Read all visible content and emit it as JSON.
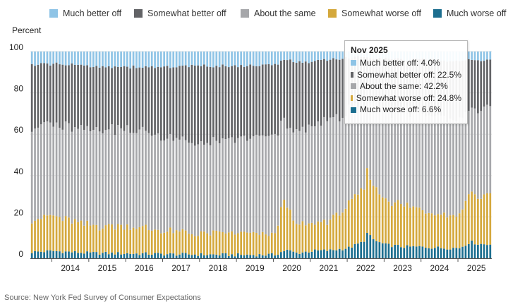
{
  "legend": {
    "items": [
      {
        "label": "Much better off",
        "color": "#8fc4e6"
      },
      {
        "label": "Somewhat better off",
        "color": "#626366"
      },
      {
        "label": "About the same",
        "color": "#a6a7aa"
      },
      {
        "label": "Somewhat worse off",
        "color": "#d4a83c"
      },
      {
        "label": "Much worse off",
        "color": "#1c6e8f"
      }
    ]
  },
  "tooltip": {
    "title": "Nov 2025",
    "rows": [
      {
        "label": "Much better off: 4.0%",
        "color": "#8fc4e6"
      },
      {
        "label": "Somewhat better off: 22.5%",
        "color": "#626366"
      },
      {
        "label": "About the same: 42.2%",
        "color": "#a6a7aa"
      },
      {
        "label": "Somewhat worse off: 24.8%",
        "color": "#d4a83c"
      },
      {
        "label": "Much worse off: 6.6%",
        "color": "#1c6e8f"
      }
    ]
  },
  "source": "Source: New York Fed Survey of Consumer Expectations",
  "chart_data": {
    "type": "bar",
    "stacked": true,
    "ylabel": "Percent",
    "ylim": [
      0,
      100
    ],
    "yticks": [
      0,
      20,
      40,
      60,
      80,
      100
    ],
    "grid": true,
    "legend_position": "top",
    "xlabels": [
      "2014",
      "2015",
      "2016",
      "2017",
      "2018",
      "2019",
      "2020",
      "2021",
      "2022",
      "2023",
      "2024",
      "2025"
    ],
    "x_start": "2013-06",
    "x_end": "2025-11",
    "anchors": {
      "much_worse": [
        [
          2013.42,
          3.0
        ],
        [
          2014.0,
          3.5
        ],
        [
          2015.0,
          2.5
        ],
        [
          2016.0,
          2.3
        ],
        [
          2017.0,
          2.0
        ],
        [
          2018.0,
          1.8
        ],
        [
          2019.0,
          1.6
        ],
        [
          2020.0,
          1.7
        ],
        [
          2020.3,
          4.0
        ],
        [
          2020.6,
          2.5
        ],
        [
          2021.0,
          3.5
        ],
        [
          2021.5,
          3.8
        ],
        [
          2022.0,
          5.0
        ],
        [
          2022.4,
          8.0
        ],
        [
          2022.5,
          12.0
        ],
        [
          2022.7,
          8.5
        ],
        [
          2023.0,
          6.5
        ],
        [
          2023.5,
          5.5
        ],
        [
          2024.0,
          5.5
        ],
        [
          2024.5,
          5.0
        ],
        [
          2025.0,
          5.0
        ],
        [
          2025.3,
          8.0
        ],
        [
          2025.5,
          7.0
        ],
        [
          2025.83,
          6.6
        ]
      ],
      "somewhat_worse": [
        [
          2013.42,
          16.0
        ],
        [
          2014.0,
          17.0
        ],
        [
          2015.0,
          13.0
        ],
        [
          2016.0,
          13.5
        ],
        [
          2017.0,
          11.0
        ],
        [
          2018.0,
          10.0
        ],
        [
          2019.0,
          10.5
        ],
        [
          2020.0,
          9.5
        ],
        [
          2020.25,
          26.0
        ],
        [
          2020.5,
          14.0
        ],
        [
          2021.0,
          13.0
        ],
        [
          2021.5,
          14.5
        ],
        [
          2022.0,
          21.0
        ],
        [
          2022.4,
          25.0
        ],
        [
          2022.5,
          30.0
        ],
        [
          2022.8,
          24.0
        ],
        [
          2023.0,
          22.0
        ],
        [
          2023.5,
          20.0
        ],
        [
          2024.0,
          18.0
        ],
        [
          2024.5,
          17.0
        ],
        [
          2025.0,
          16.0
        ],
        [
          2025.3,
          26.0
        ],
        [
          2025.5,
          22.0
        ],
        [
          2025.83,
          24.8
        ]
      ],
      "about_same": [
        [
          2013.42,
          45.0
        ],
        [
          2014.0,
          44.0
        ],
        [
          2015.0,
          47.0
        ],
        [
          2016.0,
          47.0
        ],
        [
          2017.0,
          46.0
        ],
        [
          2018.0,
          43.0
        ],
        [
          2019.0,
          45.0
        ],
        [
          2020.0,
          48.0
        ],
        [
          2020.3,
          37.0
        ],
        [
          2020.6,
          45.0
        ],
        [
          2021.0,
          47.0
        ],
        [
          2021.5,
          49.0
        ],
        [
          2022.0,
          45.0
        ],
        [
          2022.5,
          40.0
        ],
        [
          2023.0,
          43.0
        ],
        [
          2023.5,
          45.0
        ],
        [
          2024.0,
          46.0
        ],
        [
          2024.5,
          47.0
        ],
        [
          2025.0,
          45.0
        ],
        [
          2025.3,
          40.0
        ],
        [
          2025.5,
          41.0
        ],
        [
          2025.83,
          42.2
        ]
      ],
      "much_better": [
        [
          2013.42,
          6.5
        ],
        [
          2014.0,
          6.0
        ],
        [
          2015.0,
          7.0
        ],
        [
          2016.0,
          7.5
        ],
        [
          2017.0,
          7.5
        ],
        [
          2018.0,
          7.0
        ],
        [
          2019.0,
          7.0
        ],
        [
          2020.0,
          6.5
        ],
        [
          2020.3,
          4.0
        ],
        [
          2020.6,
          5.0
        ],
        [
          2021.0,
          5.0
        ],
        [
          2022.0,
          3.0
        ],
        [
          2022.5,
          2.5
        ],
        [
          2023.0,
          3.5
        ],
        [
          2024.0,
          4.0
        ],
        [
          2025.0,
          4.5
        ],
        [
          2025.83,
          4.0
        ]
      ]
    },
    "series_names": [
      "Much better off",
      "Somewhat better off",
      "About the same",
      "Somewhat worse off",
      "Much worse off"
    ],
    "stack_order_bottom_to_top": [
      "much_worse",
      "somewhat_worse",
      "about_same",
      "somewhat_better",
      "much_better"
    ],
    "somewhat_better_is_remainder_to": 100,
    "highlight": {
      "month": "2025-11",
      "much_better": 4.0,
      "somewhat_better": 22.5,
      "about_same": 42.2,
      "somewhat_worse": 24.8,
      "much_worse": 6.6
    }
  }
}
